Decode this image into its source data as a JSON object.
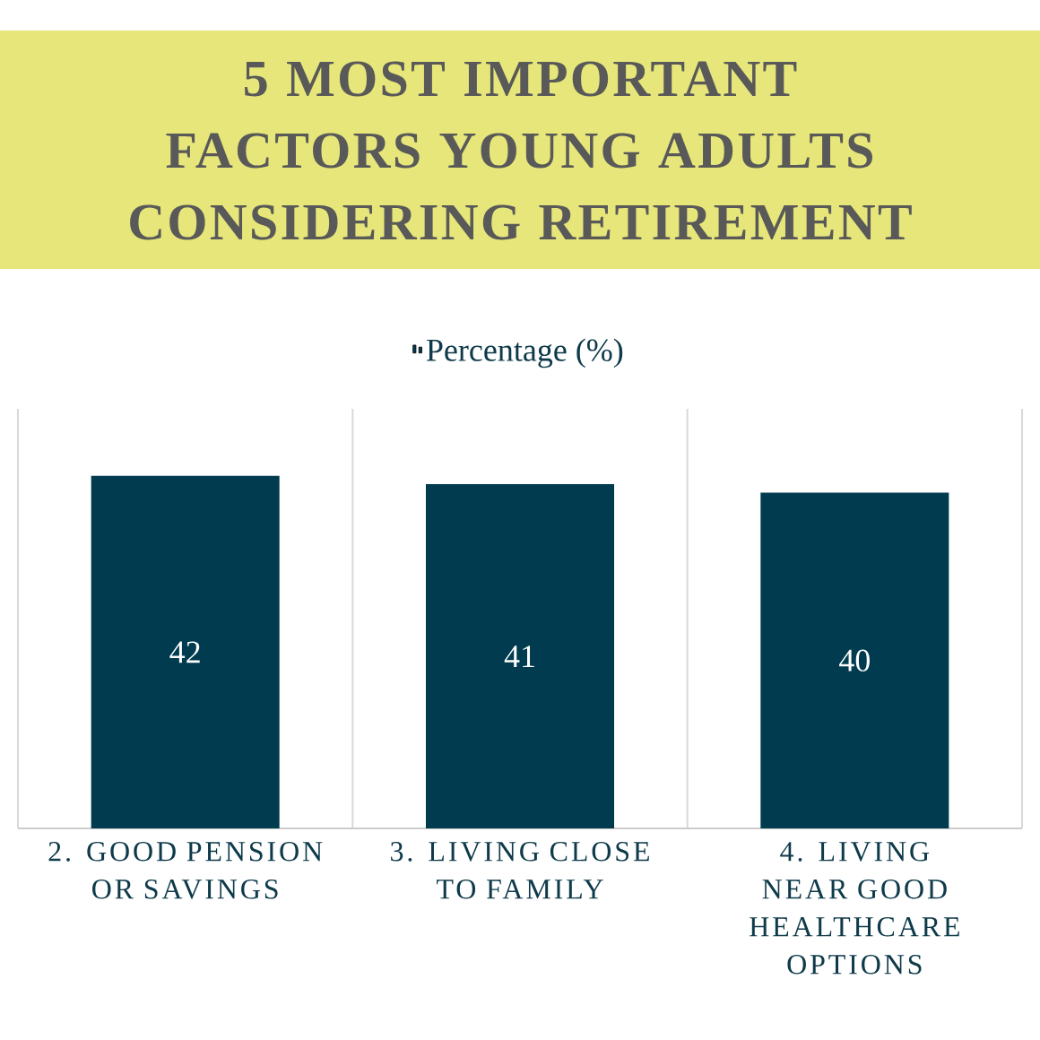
{
  "chart_data": {
    "type": "bar",
    "title": "5 MOST IMPORTANT FACTORS YOUNG ADULTS CONSIDERING RETIREMENT",
    "categories": [
      "2. GOOD PENSION OR SAVINGS",
      "3. LIVING CLOSE TO FAMILY",
      "4. LIVING NEAR GOOD HEALTHCARE OPTIONS"
    ],
    "series": [
      {
        "name": "Percentage (%)",
        "color": "#003b4f",
        "values": [
          42,
          41,
          40
        ]
      }
    ],
    "data_labels": true,
    "grid": "x",
    "legend": "top"
  }
}
